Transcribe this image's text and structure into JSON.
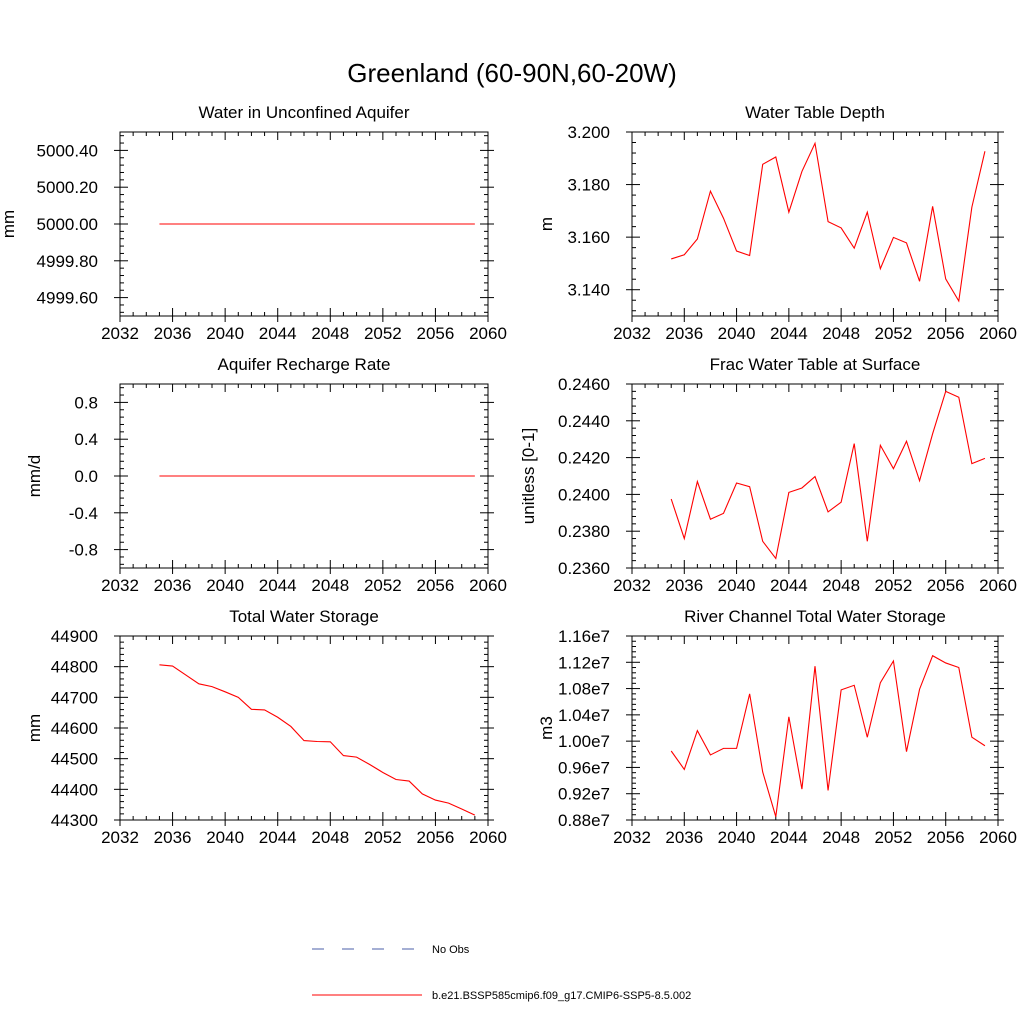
{
  "figure": {
    "title": "Greenland (60-90N,60-20W)"
  },
  "legend": {
    "items": [
      {
        "label": "No Obs",
        "color": "#4b5fa8",
        "dash": true
      },
      {
        "label": "b.e21.BSSP585cmip6.f09_g17.CMIP6-SSP5-8.5.002",
        "color": "#ff0000",
        "dash": false
      }
    ]
  },
  "chart_data": [
    {
      "type": "line",
      "title": "Water in Unconfined Aquifer",
      "ylabel": "mm",
      "xlim": [
        2032,
        2060
      ],
      "ylim": [
        4999.5,
        5000.5
      ],
      "xticks": [
        2032,
        2036,
        2040,
        2044,
        2048,
        2052,
        2056,
        2060
      ],
      "yticks": [
        4999.6,
        4999.8,
        5000.0,
        5000.2,
        5000.4
      ],
      "ytick_labels": [
        "4999.60",
        "4999.80",
        "5000.00",
        "5000.20",
        "5000.40"
      ],
      "series": [
        {
          "color": "#ff0000",
          "x": [
            2035,
            2036,
            2037,
            2038,
            2039,
            2040,
            2041,
            2042,
            2043,
            2044,
            2045,
            2046,
            2047,
            2048,
            2049,
            2050,
            2051,
            2052,
            2053,
            2054,
            2055,
            2056,
            2057,
            2058,
            2059
          ],
          "y": [
            5000,
            5000,
            5000,
            5000,
            5000,
            5000,
            5000,
            5000,
            5000,
            5000,
            5000,
            5000,
            5000,
            5000,
            5000,
            5000,
            5000,
            5000,
            5000,
            5000,
            5000,
            5000,
            5000,
            5000,
            5000
          ]
        }
      ]
    },
    {
      "type": "line",
      "title": "Water Table Depth",
      "ylabel": "m",
      "xlim": [
        2032,
        2060
      ],
      "ylim": [
        3.13,
        3.2
      ],
      "xticks": [
        2032,
        2036,
        2040,
        2044,
        2048,
        2052,
        2056,
        2060
      ],
      "yticks": [
        3.14,
        3.16,
        3.18,
        3.2
      ],
      "ytick_labels": [
        "3.140",
        "3.160",
        "3.180",
        "3.200"
      ],
      "series": [
        {
          "color": "#ff0000",
          "x": [
            2035,
            2036,
            2037,
            2038,
            2039,
            2040,
            2041,
            2042,
            2043,
            2044,
            2045,
            2046,
            2047,
            2048,
            2049,
            2050,
            2051,
            2052,
            2053,
            2054,
            2055,
            2056,
            2057,
            2058,
            2059
          ],
          "y": [
            3.1517,
            3.1533,
            3.1593,
            3.1775,
            3.1672,
            3.1547,
            3.153,
            3.1877,
            3.1905,
            3.1695,
            3.185,
            3.1957,
            3.1659,
            3.1635,
            3.1558,
            3.1695,
            3.148,
            3.1599,
            3.1578,
            3.1432,
            3.1717,
            3.1441,
            3.1357,
            3.1714,
            3.1927
          ]
        }
      ]
    },
    {
      "type": "line",
      "title": "Aquifer Recharge Rate",
      "ylabel": "mm/d",
      "xlim": [
        2032,
        2060
      ],
      "ylim": [
        -1.0,
        1.0
      ],
      "xticks": [
        2032,
        2036,
        2040,
        2044,
        2048,
        2052,
        2056,
        2060
      ],
      "yticks": [
        -0.8,
        -0.4,
        0.0,
        0.4,
        0.8
      ],
      "ytick_labels": [
        "-0.8",
        "-0.4",
        "0.0",
        "0.4",
        "0.8"
      ],
      "series": [
        {
          "color": "#ff0000",
          "x": [
            2035,
            2036,
            2037,
            2038,
            2039,
            2040,
            2041,
            2042,
            2043,
            2044,
            2045,
            2046,
            2047,
            2048,
            2049,
            2050,
            2051,
            2052,
            2053,
            2054,
            2055,
            2056,
            2057,
            2058,
            2059
          ],
          "y": [
            0,
            0,
            0,
            0,
            0,
            0,
            0,
            0,
            0,
            0,
            0,
            0,
            0,
            0,
            0,
            0,
            0,
            0,
            0,
            0,
            0,
            0,
            0,
            0,
            0
          ]
        }
      ]
    },
    {
      "type": "line",
      "title": "Frac Water Table at Surface",
      "ylabel": "unitless [0-1]",
      "xlim": [
        2032,
        2060
      ],
      "ylim": [
        0.236,
        0.246
      ],
      "xticks": [
        2032,
        2036,
        2040,
        2044,
        2048,
        2052,
        2056,
        2060
      ],
      "yticks": [
        0.236,
        0.238,
        0.24,
        0.242,
        0.244,
        0.246
      ],
      "ytick_labels": [
        "0.2360",
        "0.2380",
        "0.2400",
        "0.2420",
        "0.2440",
        "0.2460"
      ],
      "series": [
        {
          "color": "#ff0000",
          "x": [
            2035,
            2036,
            2037,
            2038,
            2039,
            2040,
            2041,
            2042,
            2043,
            2044,
            2045,
            2046,
            2047,
            2048,
            2049,
            2050,
            2051,
            2052,
            2053,
            2054,
            2055,
            2056,
            2057,
            2058,
            2059
          ],
          "y": [
            0.23975,
            0.2376,
            0.2407,
            0.23865,
            0.23897,
            0.24062,
            0.24042,
            0.23745,
            0.23652,
            0.24011,
            0.24035,
            0.24097,
            0.23905,
            0.23958,
            0.24276,
            0.23745,
            0.24267,
            0.2414,
            0.24289,
            0.24074,
            0.2433,
            0.2456,
            0.24528,
            0.24167,
            0.24196
          ]
        }
      ]
    },
    {
      "type": "line",
      "title": "Total Water Storage",
      "ylabel": "mm",
      "xlim": [
        2032,
        2060
      ],
      "ylim": [
        44300,
        44900
      ],
      "xticks": [
        2032,
        2036,
        2040,
        2044,
        2048,
        2052,
        2056,
        2060
      ],
      "yticks": [
        44300,
        44400,
        44500,
        44600,
        44700,
        44800,
        44900
      ],
      "ytick_labels": [
        "44300",
        "44400",
        "44500",
        "44600",
        "44700",
        "44800",
        "44900"
      ],
      "series": [
        {
          "color": "#ff0000",
          "x": [
            2035,
            2036,
            2037,
            2038,
            2039,
            2040,
            2041,
            2042,
            2043,
            2044,
            2045,
            2046,
            2047,
            2048,
            2049,
            2050,
            2051,
            2052,
            2053,
            2054,
            2055,
            2056,
            2057,
            2058,
            2059
          ],
          "y": [
            44806,
            44802,
            44773,
            44744,
            44735,
            44718,
            44700,
            44661,
            44659,
            44635,
            44605,
            44559,
            44556,
            44555,
            44510,
            44505,
            44481,
            44455,
            44432,
            44427,
            44385,
            44365,
            44355,
            44336,
            44316
          ]
        }
      ]
    },
    {
      "type": "line",
      "title": "River Channel Total Water Storage",
      "ylabel": "m3",
      "xlim": [
        2032,
        2060
      ],
      "ylim": [
        8800000,
        11600000
      ],
      "xticks": [
        2032,
        2036,
        2040,
        2044,
        2048,
        2052,
        2056,
        2060
      ],
      "yticks": [
        8800000,
        9200000,
        9600000,
        10000000,
        10400000,
        10800000,
        11200000,
        11600000
      ],
      "ytick_labels": [
        "0.88e7",
        "0.92e7",
        "0.96e7",
        "1.00e7",
        "1.04e7",
        "1.08e7",
        "1.12e7",
        "1.16e7"
      ],
      "series": [
        {
          "color": "#ff0000",
          "x": [
            2035,
            2036,
            2037,
            2038,
            2039,
            2040,
            2041,
            2042,
            2043,
            2044,
            2045,
            2046,
            2047,
            2048,
            2049,
            2050,
            2051,
            2052,
            2053,
            2054,
            2055,
            2056,
            2057,
            2058,
            2059
          ],
          "y": [
            9850000,
            9570000,
            10160000,
            9790000,
            9890000,
            9890000,
            10720000,
            9530000,
            8850000,
            10370000,
            9270000,
            11140000,
            9250000,
            10780000,
            10850000,
            10060000,
            10890000,
            11220000,
            9840000,
            10790000,
            11300000,
            11190000,
            11120000,
            10060000,
            9930000
          ]
        }
      ]
    }
  ]
}
